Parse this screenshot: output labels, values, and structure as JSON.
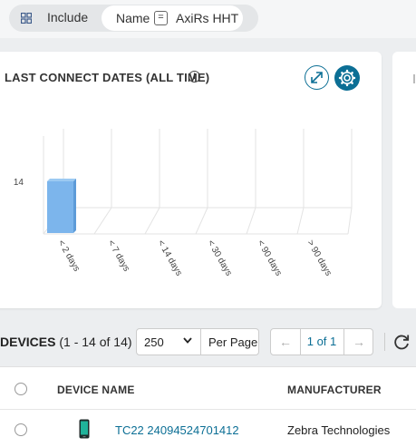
{
  "filter": {
    "include_label": "Include",
    "chip": {
      "key": "Name",
      "operator": "=",
      "value": "AxiRs HHT"
    }
  },
  "card": {
    "title": "LAST CONNECT DATES (ALL TIME)",
    "info_glyph": "i",
    "expand_icon": "expand-arrows-icon",
    "settings_icon": "gear-icon"
  },
  "chart_data": {
    "type": "bar",
    "categories": [
      "< 2 days",
      "< 7 days",
      "< 14 days",
      "< 30 days",
      "< 90 days",
      "> 90 days"
    ],
    "values": [
      14,
      0,
      0,
      0,
      0,
      0
    ],
    "ytick_label": "14",
    "bar_color": "#7cb5ec"
  },
  "devices": {
    "title": "DEVICES",
    "count_text": "(1 - 14 of 14)",
    "per_page_value": "250",
    "per_page_label": "Per Page",
    "page_text": "1 of 1",
    "prev_glyph": "←",
    "next_glyph": "→"
  },
  "table": {
    "columns": [
      "DEVICE NAME",
      "MANUFACTURER"
    ],
    "rows": [
      {
        "device_name": "TC22 24094524701412",
        "manufacturer": "Zebra Technologies",
        "icon": "phone-icon"
      }
    ]
  },
  "colors": {
    "accent": "#0c6f95",
    "bar": "#7cb5ec",
    "page_bg": "#eceef0"
  }
}
